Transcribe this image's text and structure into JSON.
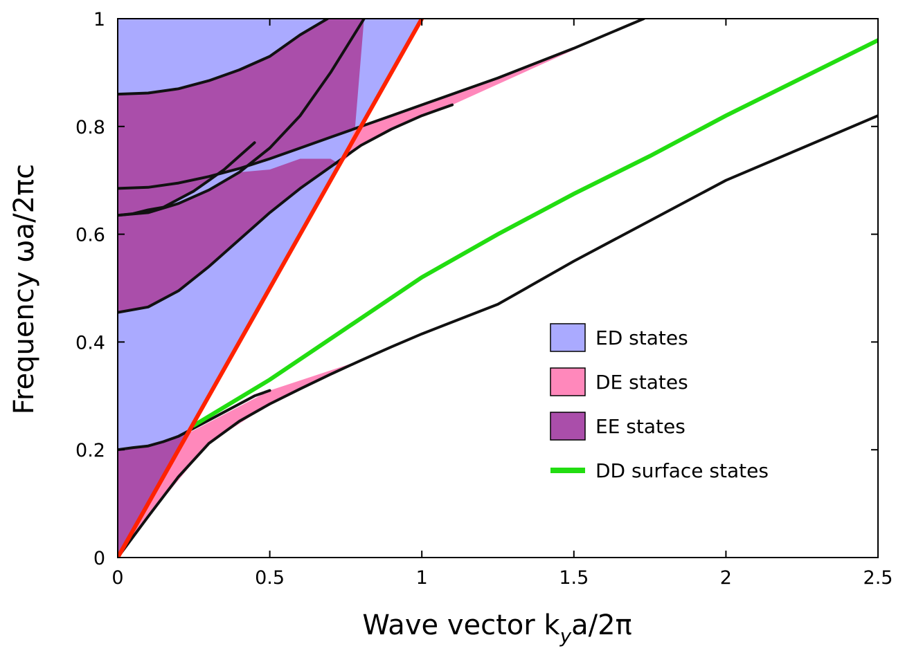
{
  "chart_data": {
    "type": "area",
    "xlabel": {
      "main": "Wave vector  k",
      "sub": "y",
      "rest": "a/2π"
    },
    "ylabel": "Frequency  ωa/2πc",
    "xlim": [
      0,
      2.5
    ],
    "ylim": [
      0,
      1
    ],
    "xticks": [
      0,
      0.5,
      1,
      1.5,
      2,
      2.5
    ],
    "xtick_labels": [
      "0",
      "0.5",
      "1",
      "1.5",
      "2",
      "2.5"
    ],
    "yticks": [
      0,
      0.2,
      0.4,
      0.6,
      0.8,
      1
    ],
    "ytick_labels": [
      "0",
      "0.2",
      "0.4",
      "0.6",
      "0.8",
      "1"
    ],
    "grid": false,
    "legend_position": "center-right",
    "colors": {
      "ed": "#aaaaff",
      "de": "#ff88bb",
      "ee": "#aa4eaa",
      "dd": "#22dd11",
      "light_line": "#ff2200",
      "band": "#111111"
    },
    "legend": [
      {
        "label": "ED states",
        "kind": "patch",
        "color_key": "ed"
      },
      {
        "label": "DE states",
        "kind": "patch",
        "color_key": "de"
      },
      {
        "label": "EE  states",
        "kind": "patch",
        "color_key": "ee"
      },
      {
        "label": "DD surface states",
        "kind": "line",
        "color_key": "dd"
      }
    ],
    "series": [
      {
        "role": "light-line",
        "color_key": "light_line",
        "x": [
          0,
          1.0
        ],
        "y": [
          0,
          1.0
        ]
      },
      {
        "role": "band-1-lower",
        "color_key": "band",
        "x": [
          0,
          0.1,
          0.2,
          0.3,
          0.4,
          0.5,
          0.6,
          0.7,
          0.8,
          0.9,
          1.0,
          1.25,
          1.5,
          1.75,
          2.0,
          2.25,
          2.5
        ],
        "y": [
          0,
          0.076,
          0.15,
          0.212,
          0.253,
          0.285,
          0.313,
          0.34,
          0.366,
          0.391,
          0.415,
          0.47,
          0.55,
          0.625,
          0.7,
          0.76,
          0.82
        ]
      },
      {
        "role": "band-2-lower",
        "color_key": "band",
        "x": [
          0,
          0.05,
          0.1,
          0.15,
          0.2,
          0.25,
          0.3,
          0.35,
          0.4,
          0.45,
          0.5
        ],
        "y": [
          0.2,
          0.204,
          0.207,
          0.215,
          0.225,
          0.24,
          0.255,
          0.27,
          0.285,
          0.3,
          0.31
        ]
      },
      {
        "role": "band-3-lower",
        "color_key": "band",
        "x": [
          0,
          0.1,
          0.2,
          0.3,
          0.4,
          0.5,
          0.6,
          0.7,
          0.8,
          0.9,
          1.0,
          1.1
        ],
        "y": [
          0.455,
          0.465,
          0.495,
          0.54,
          0.59,
          0.64,
          0.685,
          0.725,
          0.765,
          0.795,
          0.82,
          0.84
        ]
      },
      {
        "role": "band-3-upper",
        "color_key": "band",
        "x": [
          0,
          0.1,
          0.2,
          0.3,
          0.4,
          0.5,
          0.6,
          0.7,
          0.8,
          0.9,
          1.0,
          1.25,
          1.5,
          1.73
        ],
        "y": [
          0.685,
          0.687,
          0.695,
          0.707,
          0.722,
          0.74,
          0.76,
          0.78,
          0.8,
          0.82,
          0.84,
          0.89,
          0.945,
          1.0
        ]
      },
      {
        "role": "band-4-lower",
        "color_key": "band",
        "x": [
          0,
          0.05,
          0.1,
          0.15,
          0.2,
          0.25,
          0.3,
          0.35,
          0.4,
          0.45
        ],
        "y": [
          0.635,
          0.638,
          0.645,
          0.65,
          0.665,
          0.68,
          0.7,
          0.72,
          0.745,
          0.77
        ]
      },
      {
        "role": "band-4-upper",
        "color_key": "band",
        "x": [
          0,
          0.1,
          0.2,
          0.3,
          0.4,
          0.5,
          0.6,
          0.7,
          0.81
        ],
        "y": [
          0.635,
          0.64,
          0.657,
          0.682,
          0.715,
          0.76,
          0.82,
          0.9,
          1.0
        ]
      },
      {
        "role": "band-5-lower",
        "color_key": "band",
        "x": [
          0,
          0.1,
          0.2,
          0.3,
          0.4,
          0.5,
          0.6,
          0.69
        ],
        "y": [
          0.86,
          0.862,
          0.87,
          0.885,
          0.905,
          0.93,
          0.97,
          1.0
        ]
      },
      {
        "role": "band-5-upper",
        "color_key": "band",
        "x": [
          0,
          0.1,
          0.2,
          0.3,
          0.4,
          0.5,
          0.6,
          0.7,
          0.8
        ],
        "y": [
          0.86,
          0.87,
          0.89,
          0.92,
          0.95,
          0.98,
          1.0,
          1.0,
          1.0
        ]
      },
      {
        "role": "dd-surface-states",
        "color_key": "dd",
        "x": [
          0.25,
          0.5,
          0.75,
          1.0,
          1.25,
          1.5,
          1.75,
          2.0,
          2.25,
          2.5
        ],
        "y": [
          0.245,
          0.33,
          0.425,
          0.52,
          0.6,
          0.675,
          0.745,
          0.82,
          0.89,
          0.96
        ]
      }
    ],
    "regions": [
      {
        "role": "ED states",
        "color_key": "ed"
      },
      {
        "role": "DE states",
        "color_key": "de"
      },
      {
        "role": "EE states",
        "color_key": "ee"
      }
    ]
  }
}
